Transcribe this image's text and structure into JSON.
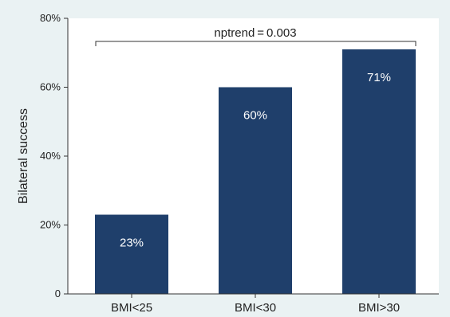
{
  "chart_data": {
    "type": "bar",
    "categories": [
      "BMI<25",
      "BMI<30",
      "BMI>30"
    ],
    "values": [
      23,
      60,
      71
    ],
    "value_labels": [
      "23%",
      "60%",
      "71%"
    ],
    "ylabel": "Bilateral success",
    "xlabel": "",
    "ylim": [
      0,
      80
    ],
    "yticks": [
      0,
      20,
      40,
      60,
      80
    ],
    "ytick_labels": [
      "0",
      "20%",
      "40%",
      "60%",
      "80%"
    ],
    "annotation": "nptrend = 0.003",
    "bar_color": "#1f3f6b",
    "plot_background": "#ffffff",
    "page_background": "#eaf2f3",
    "grid": false
  }
}
